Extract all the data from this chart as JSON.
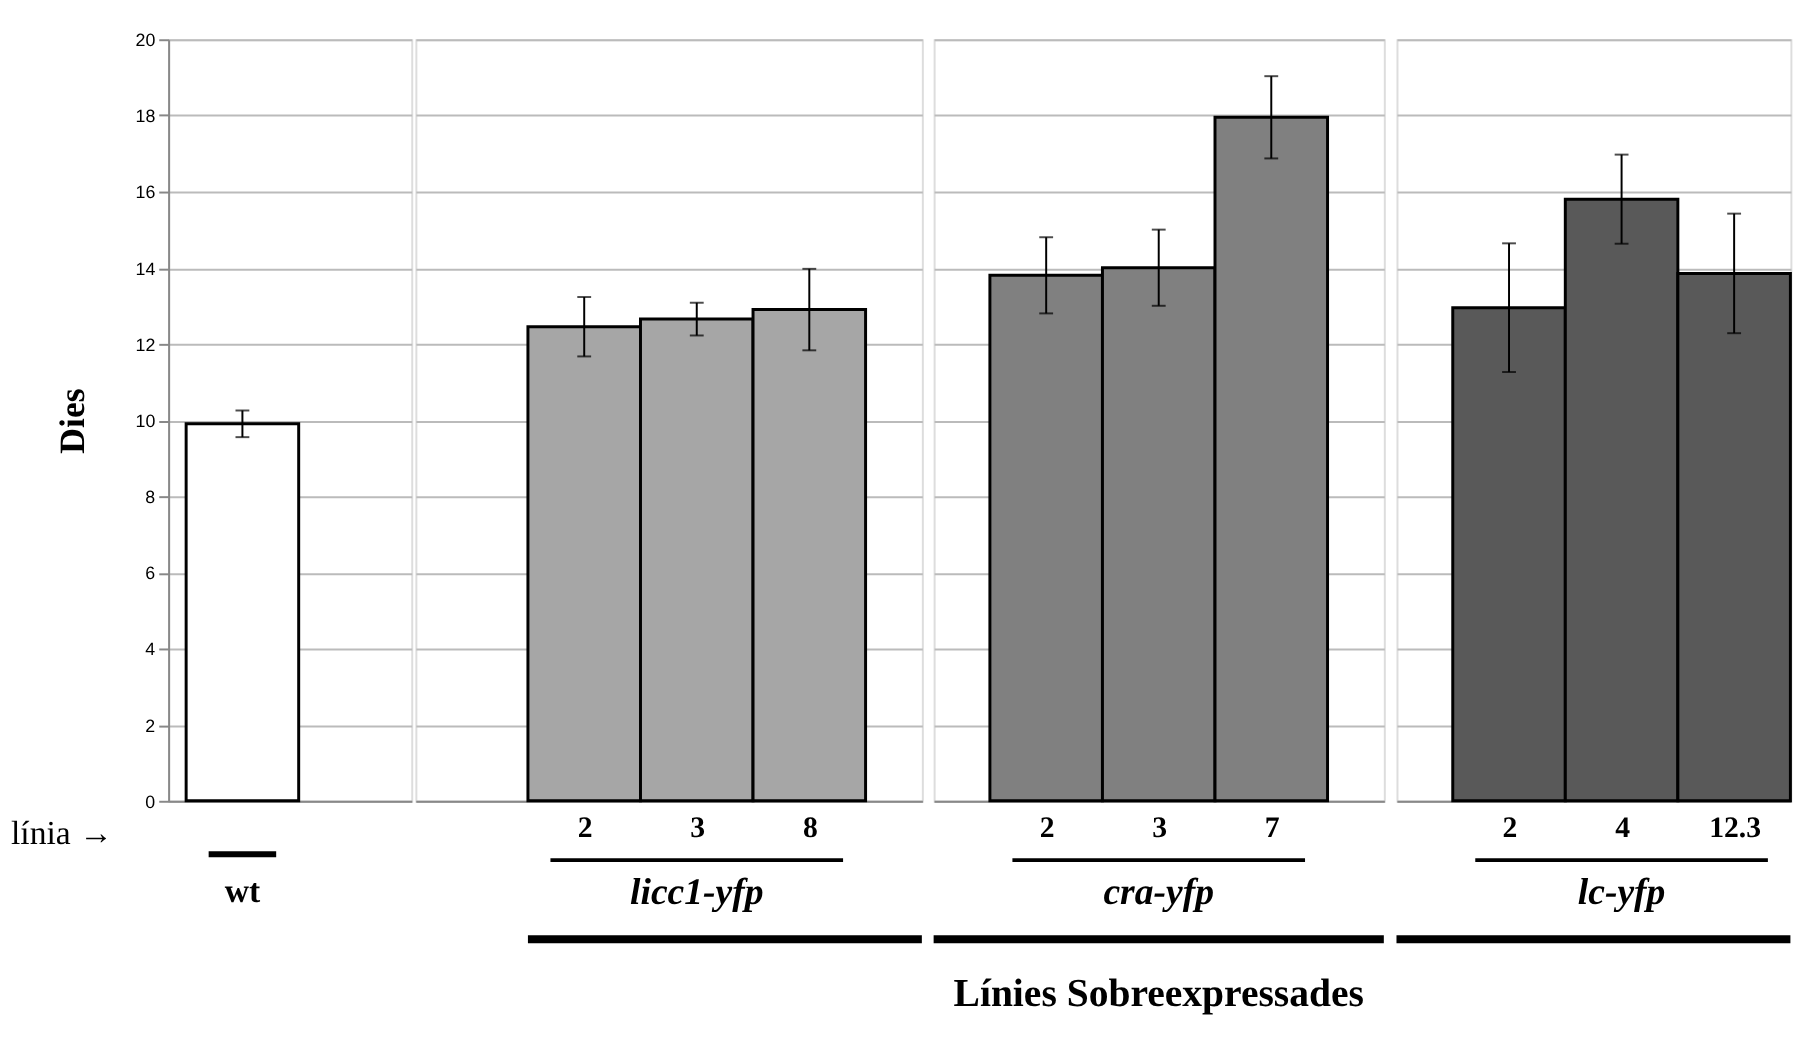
{
  "chart_data": [
    {
      "type": "bar",
      "ylabel": "Dies",
      "xlabel": "wt",
      "categories": [
        null
      ],
      "values": [
        9.9
      ],
      "errors": [
        0.35
      ],
      "colors": [
        "#ffffff"
      ],
      "annotations": [
        "línia →"
      ],
      "ylim": [
        0,
        20
      ],
      "yticks": [
        0,
        2,
        4,
        6,
        8,
        10,
        12,
        14,
        16,
        18,
        20
      ],
      "grid": "y",
      "tick_labels": "y"
    },
    {
      "type": "bar",
      "xlabel": "licc1-yfp",
      "categories": [
        "2",
        "3",
        "8"
      ],
      "values": [
        12.45,
        12.65,
        12.9
      ],
      "errors": [
        0.78,
        0.43,
        1.07
      ],
      "colors": [
        "#a6a6a6",
        "#a6a6a6",
        "#a6a6a6"
      ],
      "ylim": [
        0,
        20
      ],
      "yticks": [
        0,
        2,
        4,
        6,
        8,
        10,
        12,
        14,
        16,
        18,
        20
      ],
      "grid": "y",
      "tick_labels": "x"
    },
    {
      "type": "bar",
      "xlabel": "cra-yfp",
      "categories": [
        "2",
        "3",
        "7"
      ],
      "values": [
        13.8,
        14.0,
        17.95
      ],
      "errors": [
        1.0,
        1.0,
        1.08
      ],
      "colors": [
        "#808080",
        "#808080",
        "#808080"
      ],
      "annotations": [
        "Línies Sobreexpressades"
      ],
      "ylim": [
        0,
        20
      ],
      "yticks": [
        0,
        2,
        4,
        6,
        8,
        10,
        12,
        14,
        16,
        18,
        20
      ],
      "grid": "y",
      "tick_labels": "x"
    },
    {
      "type": "bar",
      "xlabel": "lc-yfp",
      "categories": [
        "2",
        "4",
        "12.3"
      ],
      "values": [
        12.95,
        15.8,
        13.85
      ],
      "errors": [
        1.69,
        1.17,
        1.57
      ],
      "colors": [
        "#595959",
        "#595959",
        "#595959"
      ],
      "ylim": [
        0,
        20
      ],
      "yticks": [
        0,
        2,
        4,
        6,
        8,
        10,
        12,
        14,
        16,
        18,
        20
      ],
      "grid": "y",
      "tick_labels": "x"
    }
  ]
}
